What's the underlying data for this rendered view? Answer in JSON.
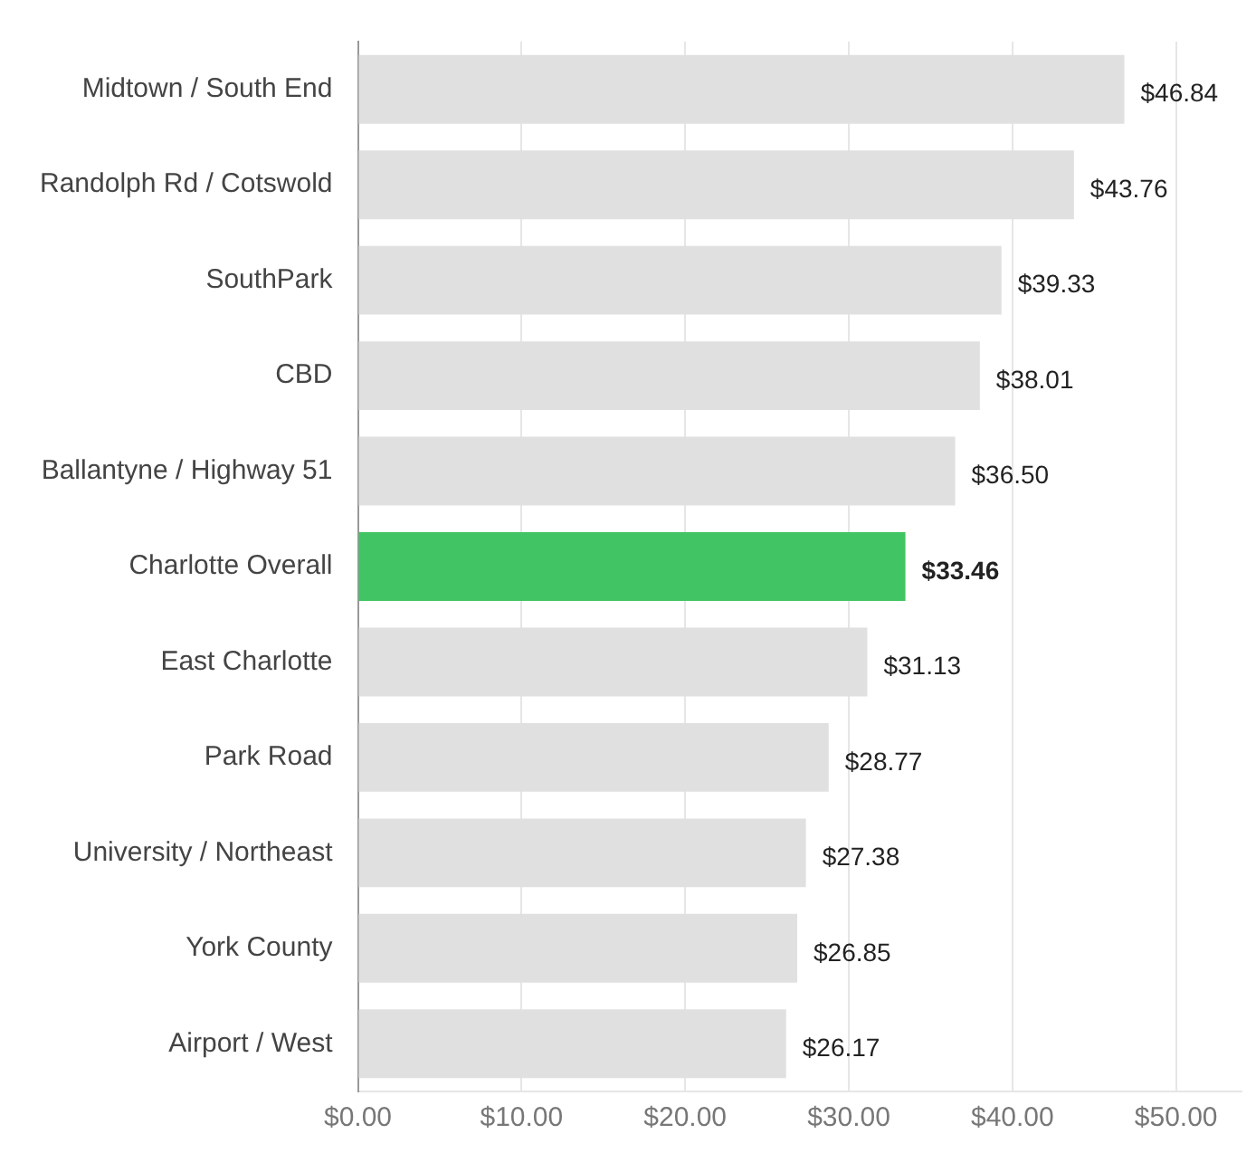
{
  "chart_data": {
    "type": "bar",
    "orientation": "horizontal",
    "categories": [
      "Midtown / South End",
      "Randolph Rd / Cotswold",
      "SouthPark",
      "CBD",
      "Ballantyne / Highway 51",
      "Charlotte Overall",
      "East Charlotte",
      "Park Road",
      "University / Northeast",
      "York County",
      "Airport / West"
    ],
    "values": [
      46.84,
      43.76,
      39.33,
      38.01,
      36.5,
      33.46,
      31.13,
      28.77,
      27.38,
      26.85,
      26.17
    ],
    "colors": [
      "#e0e0e0",
      "#e0e0e0",
      "#e0e0e0",
      "#e0e0e0",
      "#e0e0e0",
      "#41c464",
      "#e0e0e0",
      "#e0e0e0",
      "#e0e0e0",
      "#e0e0e0",
      "#e0e0e0"
    ],
    "value_labels": [
      "$46.84",
      "$43.76",
      "$39.33",
      "$38.01",
      "$36.50",
      "$33.46",
      "$31.13",
      "$28.77",
      "$27.38",
      "$26.85",
      "$26.17"
    ],
    "xlim": [
      0,
      54
    ],
    "xticks": [
      {
        "value": 0,
        "label": "$0.00"
      },
      {
        "value": 10,
        "label": "$10.00"
      },
      {
        "value": 20,
        "label": "$20.00"
      },
      {
        "value": 30,
        "label": "$30.00"
      },
      {
        "value": 40,
        "label": "$40.00"
      },
      {
        "value": 50,
        "label": "$50.00"
      }
    ],
    "grid": "x",
    "legend": false
  }
}
